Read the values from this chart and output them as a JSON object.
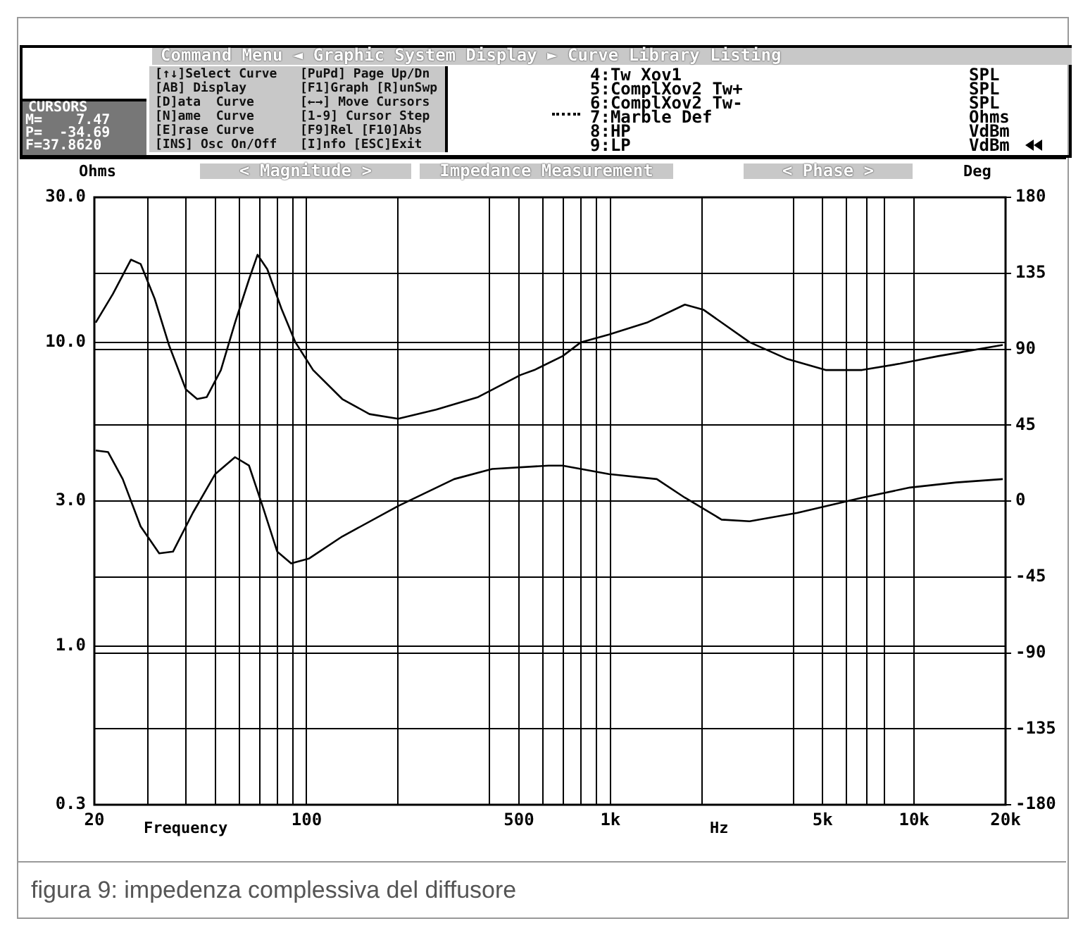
{
  "chart_data": {
    "type": "line",
    "title": "Impedance Measurement",
    "xlabel": "Frequency",
    "ylabel": "Ohms",
    "y2label": "Deg",
    "log": "xy",
    "grid": true,
    "marker": "none",
    "line_style": "solid",
    "xlim": [
      20,
      20000
    ],
    "xticks": [
      20,
      {
        "value": 30,
        "label": null
      },
      {
        "value": 40,
        "label": null
      },
      {
        "value": 50,
        "label": null
      },
      {
        "value": 60,
        "label": null
      },
      {
        "value": 70,
        "label": null
      },
      {
        "value": 80,
        "label": null
      },
      {
        "value": 90,
        "label": null
      },
      100,
      {
        "value": 200,
        "label": null
      },
      {
        "value": 400,
        "label": null
      },
      500,
      {
        "value": 600,
        "label": null
      },
      {
        "value": 700,
        "label": null
      },
      {
        "value": 800,
        "label": null
      },
      {
        "value": 900,
        "label": null
      },
      {
        "value": 1000,
        "label": "1k"
      },
      {
        "value": 2000,
        "label": null
      },
      {
        "value": 4000,
        "label": null
      },
      {
        "value": 5000,
        "label": "5k"
      },
      {
        "value": 6000,
        "label": null
      },
      {
        "value": 7000,
        "label": null
      },
      {
        "value": 8000,
        "label": null
      },
      {
        "value": 10000,
        "label": "10k"
      },
      {
        "value": 20000,
        "label": "20k"
      }
    ],
    "ylim": [
      0.3,
      30
    ],
    "yticks": [
      {
        "value": 0.3,
        "label": "0.3"
      },
      {
        "value": 1,
        "label": "1.0"
      },
      {
        "value": 3,
        "label": "3.0"
      },
      {
        "value": 10,
        "label": "10.0"
      },
      {
        "value": 30,
        "label": "30.0"
      }
    ],
    "y2lim": [
      -180,
      180
    ],
    "y2ticks": [
      -180,
      -135,
      -90,
      -45,
      0,
      45,
      90,
      135,
      180
    ],
    "series": [
      {
        "color": "#000000",
        "x": [
          20.2,
          23,
          26.4,
          28.4,
          31.6,
          35.2,
          40,
          43.6,
          46.9,
          52.2,
          58.1,
          64.6,
          68.9,
          74.2,
          82.6,
          91.8,
          105,
          131,
          161,
          200,
          267,
          367,
          506,
          562,
          696,
          800,
          989,
          1319,
          1759,
          2023,
          2873,
          3830,
          5110,
          6740,
          8990,
          12000,
          19580
        ],
        "values": [
          11.6,
          14.4,
          18.7,
          18.1,
          13.9,
          9.8,
          7.0,
          6.5,
          6.6,
          8.1,
          11.6,
          16.1,
          19.4,
          17.4,
          12.9,
          10.0,
          8.1,
          6.5,
          5.8,
          5.6,
          6.0,
          6.6,
          7.8,
          8.1,
          9.0,
          10.0,
          10.6,
          11.6,
          13.3,
          12.8,
          10.0,
          8.8,
          8.1,
          8.1,
          8.5,
          9.0,
          9.8
        ]
      },
      {
        "color": "#000000",
        "axis": "y2",
        "x": [
          20.2,
          22.2,
          24.8,
          28.4,
          32.7,
          36.3,
          42.2,
          50,
          58.1,
          64.6,
          71.9,
          80,
          88.9,
          102,
          131,
          200,
          306,
          408,
          626,
          696,
          989,
          1422,
          1759,
          2323,
          2873,
          4130,
          6740,
          9690,
          13770,
          19580
        ],
        "values": [
          30,
          29,
          13,
          -15,
          -31,
          -30,
          -7,
          16,
          26,
          21,
          -4,
          -30,
          -37,
          -34,
          -21,
          -3,
          13,
          19,
          21,
          21,
          16,
          13,
          2,
          -11,
          -12,
          -7,
          2,
          8,
          11,
          13
        ]
      }
    ],
    "annotations": [
      "Command Menu ◄ Graphic System Display ► Curve Library Listing",
      "[↑↓]Select Curve",
      "[AB] Display",
      "[D]ata  Curve",
      "[N]ame  Curve",
      "[E]rase Curve",
      "[INS] Osc On/Off",
      "[PuPd] Page Up/Dn",
      "[F1]Graph [R]unSwp",
      "[←→] Move Cursors",
      "[1-9] Cursor Step",
      "[F9]Rel [F10]Abs",
      "[I]nfo [ESC]Exit",
      "4:Tw Xov1",
      "5:ComplXov2 Tw+",
      "6:ComplXov2 Tw-",
      "7:Marble Def",
      "8:HP",
      "9:LP",
      "SPL",
      "SPL",
      "SPL",
      "Ohms",
      "VdBm",
      "VdBm",
      "CURSORS",
      "M=    7.47",
      "P=  -34.69",
      "F=37.8620",
      "< Magnitude >",
      "< Phase >",
      "Hz",
      "figura 9: impedenza complessiva del diffusore"
    ]
  }
}
